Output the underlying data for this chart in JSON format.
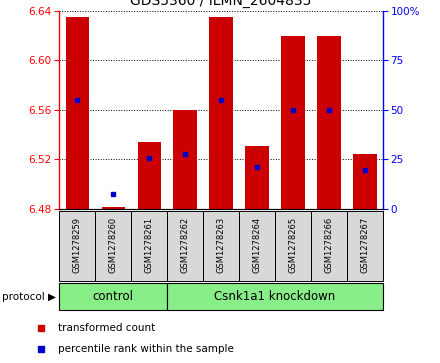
{
  "title": "GDS5360 / ILMN_2604835",
  "samples": [
    "GSM1278259",
    "GSM1278260",
    "GSM1278261",
    "GSM1278262",
    "GSM1278263",
    "GSM1278264",
    "GSM1278265",
    "GSM1278266",
    "GSM1278267"
  ],
  "bar_tops": [
    6.635,
    6.481,
    6.534,
    6.56,
    6.635,
    6.531,
    6.62,
    6.62,
    6.524
  ],
  "bar_bottom": 6.48,
  "percentile_values": [
    6.568,
    6.492,
    6.521,
    6.524,
    6.568,
    6.514,
    6.56,
    6.56,
    6.511
  ],
  "ylim": [
    6.48,
    6.64
  ],
  "yticks": [
    6.48,
    6.52,
    6.56,
    6.6,
    6.64
  ],
  "right_yticks": [
    0,
    25,
    50,
    75,
    100
  ],
  "right_ylim": [
    0,
    100
  ],
  "bar_color": "#cc0000",
  "dot_color": "#0000cc",
  "bar_width": 0.65,
  "grid_color": "#000000",
  "control_count": 3,
  "knockdown_count": 6,
  "protocol_label": "protocol",
  "group_labels": [
    "control",
    "Csnk1a1 knockdown"
  ],
  "group_bg_color": "#88ee88",
  "sample_bg_color": "#d8d8d8",
  "legend_entries": [
    "transformed count",
    "percentile rank within the sample"
  ],
  "legend_colors": [
    "#cc0000",
    "#0000cc"
  ]
}
